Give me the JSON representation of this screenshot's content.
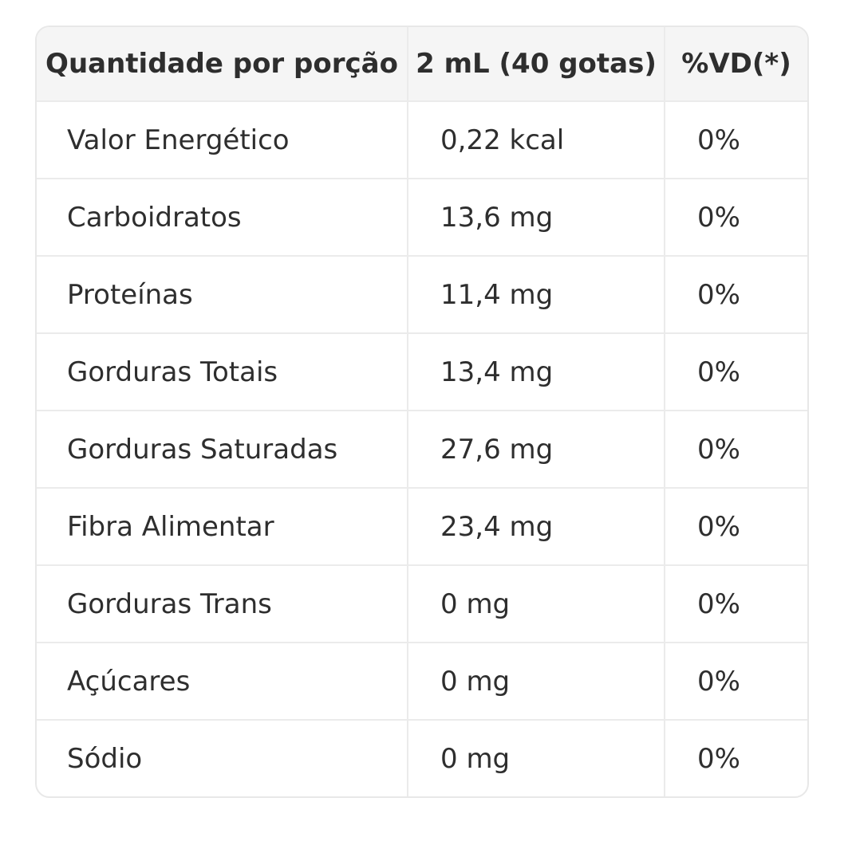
{
  "table": {
    "header": [
      "Quantidade por porção",
      "2 mL (40 gotas)",
      "%VD(*)"
    ],
    "rows": [
      [
        "Valor Energético",
        "0,22 kcal",
        "0%"
      ],
      [
        "Carboidratos",
        "13,6 mg",
        "0%"
      ],
      [
        "Proteínas",
        "11,4 mg",
        "0%"
      ],
      [
        "Gorduras Totais",
        "13,4 mg",
        "0%"
      ],
      [
        "Gorduras Saturadas",
        "27,6 mg",
        "0%"
      ],
      [
        "Fibra Alimentar",
        "23,4 mg",
        "0%"
      ],
      [
        "Gorduras Trans",
        "0 mg",
        "0%"
      ],
      [
        "Açúcares",
        "0 mg",
        "0%"
      ],
      [
        "Sódio",
        "0 mg",
        "0%"
      ]
    ]
  }
}
